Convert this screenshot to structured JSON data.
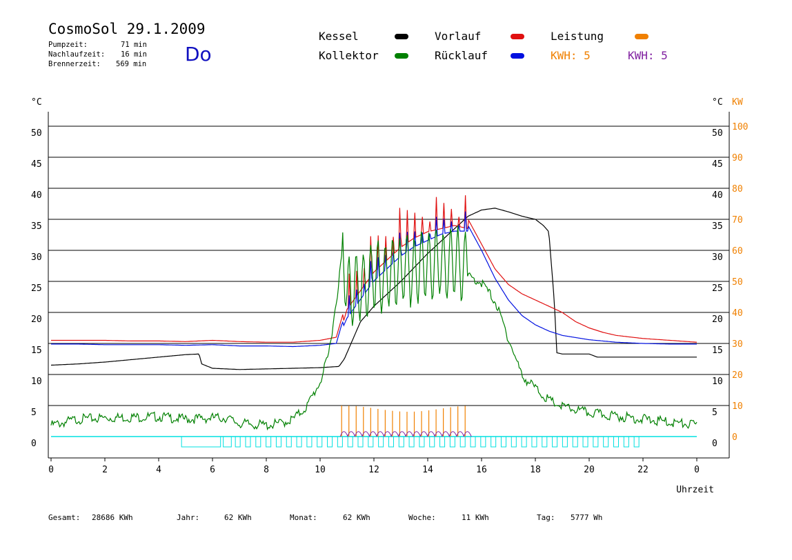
{
  "header": {
    "title": "CosmoSol 29.1.2009",
    "day": "Do",
    "pumpzeit_label": "Pumpzeit:",
    "pumpzeit_value": "71 min",
    "nachlauf_label": "Nachlaufzeit:",
    "nachlauf_value": "16 min",
    "brenner_label": "Brennerzeit:",
    "brenner_value": "569 min"
  },
  "legend": {
    "kessel": "Kessel",
    "kollektor": "Kollektor",
    "vorlauf": "Vorlauf",
    "ruecklauf": "Rücklauf",
    "leistung": "Leistung",
    "kwh_orange": "KWH: 5",
    "kwh_purple": "KWH: 5",
    "colors": {
      "kessel": "#000000",
      "kollektor": "#008000",
      "vorlauf": "#e01010",
      "ruecklauf": "#0010e0",
      "leistung": "#f08000",
      "kwh_purple": "#8020a0",
      "pump": "#00e0e0"
    }
  },
  "footer": {
    "gesamt_label": "Gesamt:",
    "gesamt_value": "28686 KWh",
    "jahr_label": "Jahr:",
    "jahr_value": "62 KWh",
    "monat_label": "Monat:",
    "monat_value": "62 KWh",
    "woche_label": "Woche:",
    "woche_value": "11 KWh",
    "tag_label": "Tag:",
    "tag_value": "5777 Wh"
  },
  "chart_data": {
    "type": "line",
    "y_unit_left": "°C",
    "y_unit_right": "°C",
    "y2_unit": "KW",
    "xlabel": "Uhrzeit",
    "xlim": [
      0,
      24
    ],
    "ylim": [
      0,
      50
    ],
    "y2lim": [
      0,
      100
    ],
    "x_ticks": [
      "0",
      "2",
      "4",
      "6",
      "8",
      "10",
      "12",
      "14",
      "16",
      "18",
      "20",
      "22",
      "0"
    ],
    "y_ticks": [
      "0",
      "5",
      "10",
      "15",
      "20",
      "25",
      "30",
      "35",
      "40",
      "45",
      "50"
    ],
    "y2_ticks": [
      "0",
      "10",
      "20",
      "30",
      "40",
      "50",
      "60",
      "70",
      "80",
      "90",
      "100"
    ],
    "grid": true,
    "series": [
      {
        "name": "Kessel",
        "color": "#000000",
        "x": [
          0,
          1,
          2,
          3,
          4,
          5,
          5.5,
          5.6,
          6,
          7,
          8,
          9,
          10,
          10.7,
          10.9,
          11.5,
          12,
          13,
          14,
          15,
          15.5,
          16,
          16.5,
          17,
          17.5,
          18,
          18.3,
          18.5,
          18.7,
          18.8,
          19,
          20,
          20.3,
          21,
          22,
          23,
          24
        ],
        "y": [
          11.5,
          11.7,
          12,
          12.4,
          12.8,
          13.2,
          13.3,
          11.7,
          11,
          10.8,
          10.9,
          11,
          11.1,
          11.3,
          12.5,
          18.5,
          21,
          25,
          29.5,
          33.5,
          35.5,
          36.5,
          36.8,
          36.2,
          35.5,
          35,
          34,
          33,
          22,
          13.5,
          13.3,
          13.3,
          12.8,
          12.8,
          12.8,
          12.8,
          12.8
        ]
      },
      {
        "name": "Vorlauf",
        "color": "#e01010",
        "x": [
          0,
          1,
          2,
          3,
          4,
          5,
          6,
          7,
          8,
          9,
          10,
          10.6,
          10.8,
          11,
          11.5,
          12,
          12.5,
          13,
          13.5,
          14,
          14.5,
          15,
          15.5,
          16,
          16.5,
          17,
          17.5,
          18,
          18.5,
          19,
          19.5,
          20,
          20.5,
          21,
          22,
          23,
          24
        ],
        "y": [
          15.5,
          15.5,
          15.5,
          15.4,
          15.4,
          15.3,
          15.5,
          15.3,
          15.2,
          15.2,
          15.5,
          16,
          19,
          22,
          25,
          28,
          30,
          32,
          33.5,
          34.5,
          35,
          35.5,
          35,
          31,
          27,
          24.5,
          23,
          22,
          21,
          20,
          18.5,
          17.5,
          16.8,
          16.3,
          15.8,
          15.5,
          15.2
        ]
      },
      {
        "name": "Rücklauf",
        "color": "#0010e0",
        "x": [
          0,
          1,
          2,
          3,
          4,
          5,
          6,
          7,
          8,
          9,
          10,
          10.6,
          10.8,
          11,
          11.5,
          12,
          12.5,
          13,
          13.5,
          14,
          14.5,
          15,
          15.5,
          16,
          16.5,
          17,
          17.5,
          18,
          18.5,
          19,
          20,
          21,
          22,
          23,
          24
        ],
        "y": [
          14.9,
          14.9,
          14.8,
          14.8,
          14.8,
          14.7,
          14.8,
          14.6,
          14.6,
          14.5,
          14.7,
          15,
          18,
          20,
          23,
          26,
          28,
          30,
          31.5,
          32.5,
          33.5,
          34,
          34,
          30,
          25.5,
          22,
          19.5,
          18,
          17,
          16.3,
          15.6,
          15.2,
          15,
          14.9,
          14.9
        ]
      },
      {
        "name": "Kollektor",
        "color": "#008000",
        "x": [
          0,
          0.5,
          1,
          2,
          3,
          4,
          5,
          6,
          6.5,
          7,
          8,
          8.5,
          9,
          9.5,
          10,
          10.3,
          10.6,
          10.8,
          11,
          11.5,
          12,
          12.5,
          13,
          13.5,
          14,
          14.5,
          15,
          15.5,
          16,
          16.5,
          17,
          17.5,
          18,
          18.5,
          19,
          20,
          21,
          22,
          23,
          24
        ],
        "y": [
          2,
          2.5,
          3,
          3.2,
          3.3,
          3.4,
          3,
          3.2,
          3.2,
          2.3,
          2,
          2.3,
          3,
          5,
          9,
          13,
          22,
          29,
          22,
          22,
          24,
          24,
          25,
          25,
          26,
          26,
          26,
          26,
          25,
          22,
          16,
          10,
          8,
          6,
          5,
          4,
          3.5,
          3,
          2.5,
          2
        ]
      }
    ],
    "pulses_note": "Oscillating collector/flow traces during pump cycles 10.8–15.5 h",
    "kwh_purple_color": "#8020a0"
  }
}
